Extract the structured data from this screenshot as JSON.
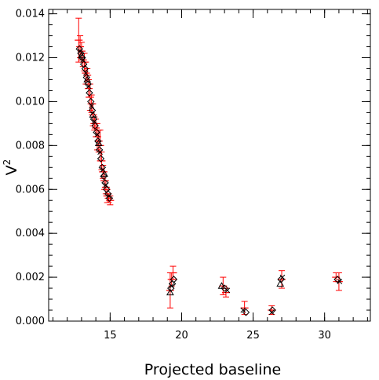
{
  "chart_data": {
    "type": "scatter",
    "title": "",
    "xlabel": "Projected baseline",
    "ylabel": "V",
    "ylabel_superscript": "2",
    "xlim": [
      10.7,
      33.2
    ],
    "ylim": [
      0.0,
      0.0142
    ],
    "x_ticks": [
      15,
      20,
      25,
      30
    ],
    "x_tick_labels": [
      "15",
      "20",
      "25",
      "30"
    ],
    "x_minor_step": 1,
    "y_ticks": [
      0.0,
      0.002,
      0.004,
      0.006,
      0.008,
      0.01,
      0.012,
      0.014
    ],
    "y_tick_labels": [
      "0.000",
      "0.002",
      "0.004",
      "0.006",
      "0.008",
      "0.010",
      "0.012",
      "0.014"
    ],
    "y_minor_step": 0.0005,
    "grid": false,
    "legend": "none",
    "series": [
      {
        "marker": "cross-with-error-bars",
        "color": "#ff0000",
        "x": [
          12.8,
          12.9,
          13.0,
          13.1,
          13.2,
          13.3,
          13.4,
          13.5,
          13.6,
          13.7,
          13.8,
          13.9,
          14.0,
          14.1,
          14.2,
          14.3,
          14.4,
          14.5,
          14.6,
          14.7,
          14.8,
          14.9,
          15.0,
          19.2,
          19.3,
          19.4,
          22.9,
          23.1,
          24.4,
          26.3,
          27.0,
          30.8,
          31.0
        ],
        "y": [
          0.0128,
          0.0125,
          0.0123,
          0.0119,
          0.0118,
          0.0113,
          0.0112,
          0.0106,
          0.0102,
          0.0099,
          0.0094,
          0.009,
          0.0088,
          0.0084,
          0.0082,
          0.008,
          0.0073,
          0.0068,
          0.0064,
          0.0061,
          0.0057,
          0.0056,
          0.0055,
          0.0014,
          0.0019,
          0.0022,
          0.0016,
          0.0013,
          0.0006,
          0.0005,
          0.0019,
          0.002,
          0.0018
        ],
        "yerr": [
          0.001,
          0.0005,
          0.0004,
          0.0003,
          0.0004,
          0.0005,
          0.0003,
          0.0004,
          0.0006,
          0.0004,
          0.0005,
          0.0003,
          0.0004,
          0.0006,
          0.0005,
          0.0007,
          0.0004,
          0.0003,
          0.0004,
          0.0003,
          0.0003,
          0.0002,
          0.0002,
          0.0008,
          0.0003,
          0.0003,
          0.0004,
          0.0002,
          0.0003,
          0.0002,
          0.0004,
          0.0002,
          0.0004
        ]
      },
      {
        "marker": "diamond",
        "color": "#000000",
        "x": [
          12.85,
          12.95,
          13.05,
          13.15,
          13.25,
          13.35,
          13.45,
          13.55,
          13.65,
          13.75,
          13.85,
          13.95,
          14.05,
          14.15,
          14.25,
          14.35,
          14.45,
          14.55,
          14.65,
          14.75,
          14.85,
          14.95,
          19.25,
          19.35,
          19.45,
          23.0,
          24.5,
          26.35,
          26.95,
          30.9
        ],
        "y": [
          0.0124,
          0.0122,
          0.012,
          0.0117,
          0.0115,
          0.0111,
          0.0108,
          0.0104,
          0.01,
          0.0096,
          0.0092,
          0.0089,
          0.0086,
          0.0082,
          0.0078,
          0.0074,
          0.007,
          0.0066,
          0.0063,
          0.006,
          0.0058,
          0.0056,
          0.0015,
          0.0017,
          0.0019,
          0.0015,
          0.0004,
          0.0005,
          0.0019,
          0.0019
        ]
      },
      {
        "marker": "x",
        "color": "#000000",
        "x": [
          12.9,
          13.1,
          13.3,
          13.5,
          13.7,
          13.9,
          14.1,
          14.3,
          14.5,
          14.7,
          14.9,
          19.3,
          23.2,
          24.3,
          26.3,
          27.05,
          31.05
        ],
        "y": [
          0.0123,
          0.0119,
          0.0113,
          0.0107,
          0.0098,
          0.0091,
          0.0085,
          0.0077,
          0.0069,
          0.0062,
          0.0057,
          0.0016,
          0.0014,
          0.0005,
          0.0004,
          0.002,
          0.0018
        ]
      },
      {
        "marker": "triangle",
        "color": "#000000",
        "x": [
          13.0,
          13.4,
          13.8,
          14.2,
          14.6,
          19.2,
          22.8,
          26.9
        ],
        "y": [
          0.0121,
          0.011,
          0.0094,
          0.0081,
          0.0067,
          0.0013,
          0.0016,
          0.0017
        ]
      }
    ]
  }
}
